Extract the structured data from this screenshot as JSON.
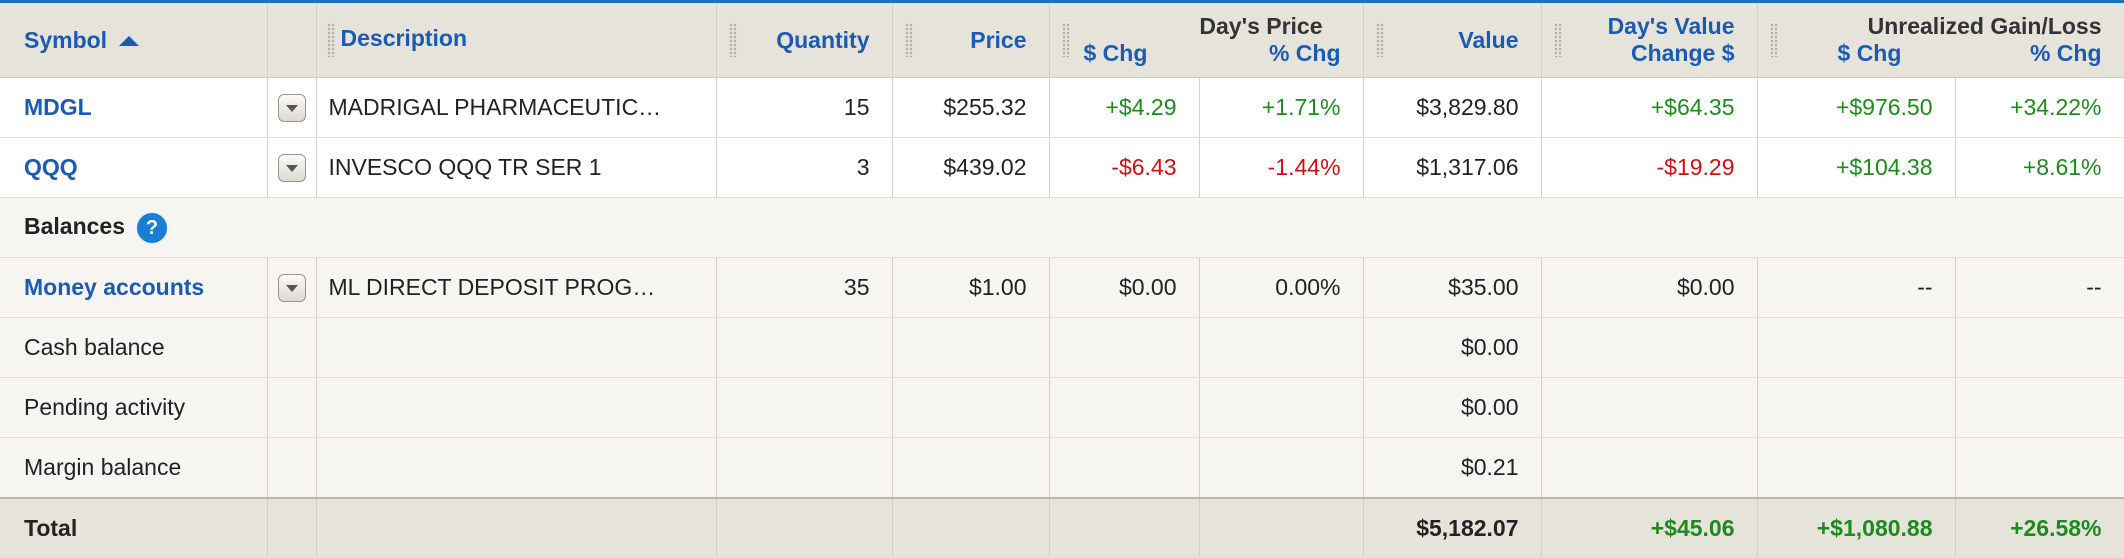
{
  "header": {
    "symbol": "Symbol",
    "description": "Description",
    "quantity": "Quantity",
    "price": "Price",
    "days_price_group": "Day's Price",
    "days_price_chg": "$ Chg",
    "days_price_pct": "% Chg",
    "value": "Value",
    "days_value_line1": "Day's Value",
    "days_value_line2": "Change $",
    "unrealized_group": "Unrealized Gain/Loss",
    "unrealized_chg": "$ Chg",
    "unrealized_pct": "% Chg"
  },
  "rows": [
    {
      "symbol": "MDGL",
      "description": "MADRIGAL PHARMACEUTIC…",
      "quantity": "15",
      "price": "$255.32",
      "price_chg": "+$4.29",
      "price_pct": "+1.71%",
      "value": "$3,829.80",
      "day_value_chg": "+$64.35",
      "unreal_chg": "+$976.50",
      "unreal_pct": "+34.22%"
    },
    {
      "symbol": "QQQ",
      "description": "INVESCO QQQ TR SER 1",
      "quantity": "3",
      "price": "$439.02",
      "price_chg": "-$6.43",
      "price_pct": "-1.44%",
      "value": "$1,317.06",
      "day_value_chg": "-$19.29",
      "unreal_chg": "+$104.38",
      "unreal_pct": "+8.61%"
    }
  ],
  "balances": {
    "label": "Balances",
    "help_glyph": "?",
    "money": {
      "label": "Money accounts",
      "description": "ML DIRECT DEPOSIT PROG…",
      "quantity": "35",
      "price": "$1.00",
      "price_chg": "$0.00",
      "price_pct": "0.00%",
      "value": "$35.00",
      "day_value_chg": "$0.00",
      "unreal_chg": "--",
      "unreal_pct": "--"
    },
    "cash": {
      "label": "Cash balance",
      "value": "$0.00"
    },
    "pending": {
      "label": "Pending activity",
      "value": "$0.00"
    },
    "margin": {
      "label": "Margin balance",
      "value": "$0.21"
    }
  },
  "total": {
    "label": "Total",
    "value": "$5,182.07",
    "day_value_chg": "+$45.06",
    "unreal_chg": "+$1,080.88",
    "unreal_pct": "+26.58%"
  },
  "colors": {
    "accent": "#1a5bb4",
    "positive": "#1d8a1d",
    "negative": "#cc1111",
    "header_bg": "#e6e3db"
  }
}
